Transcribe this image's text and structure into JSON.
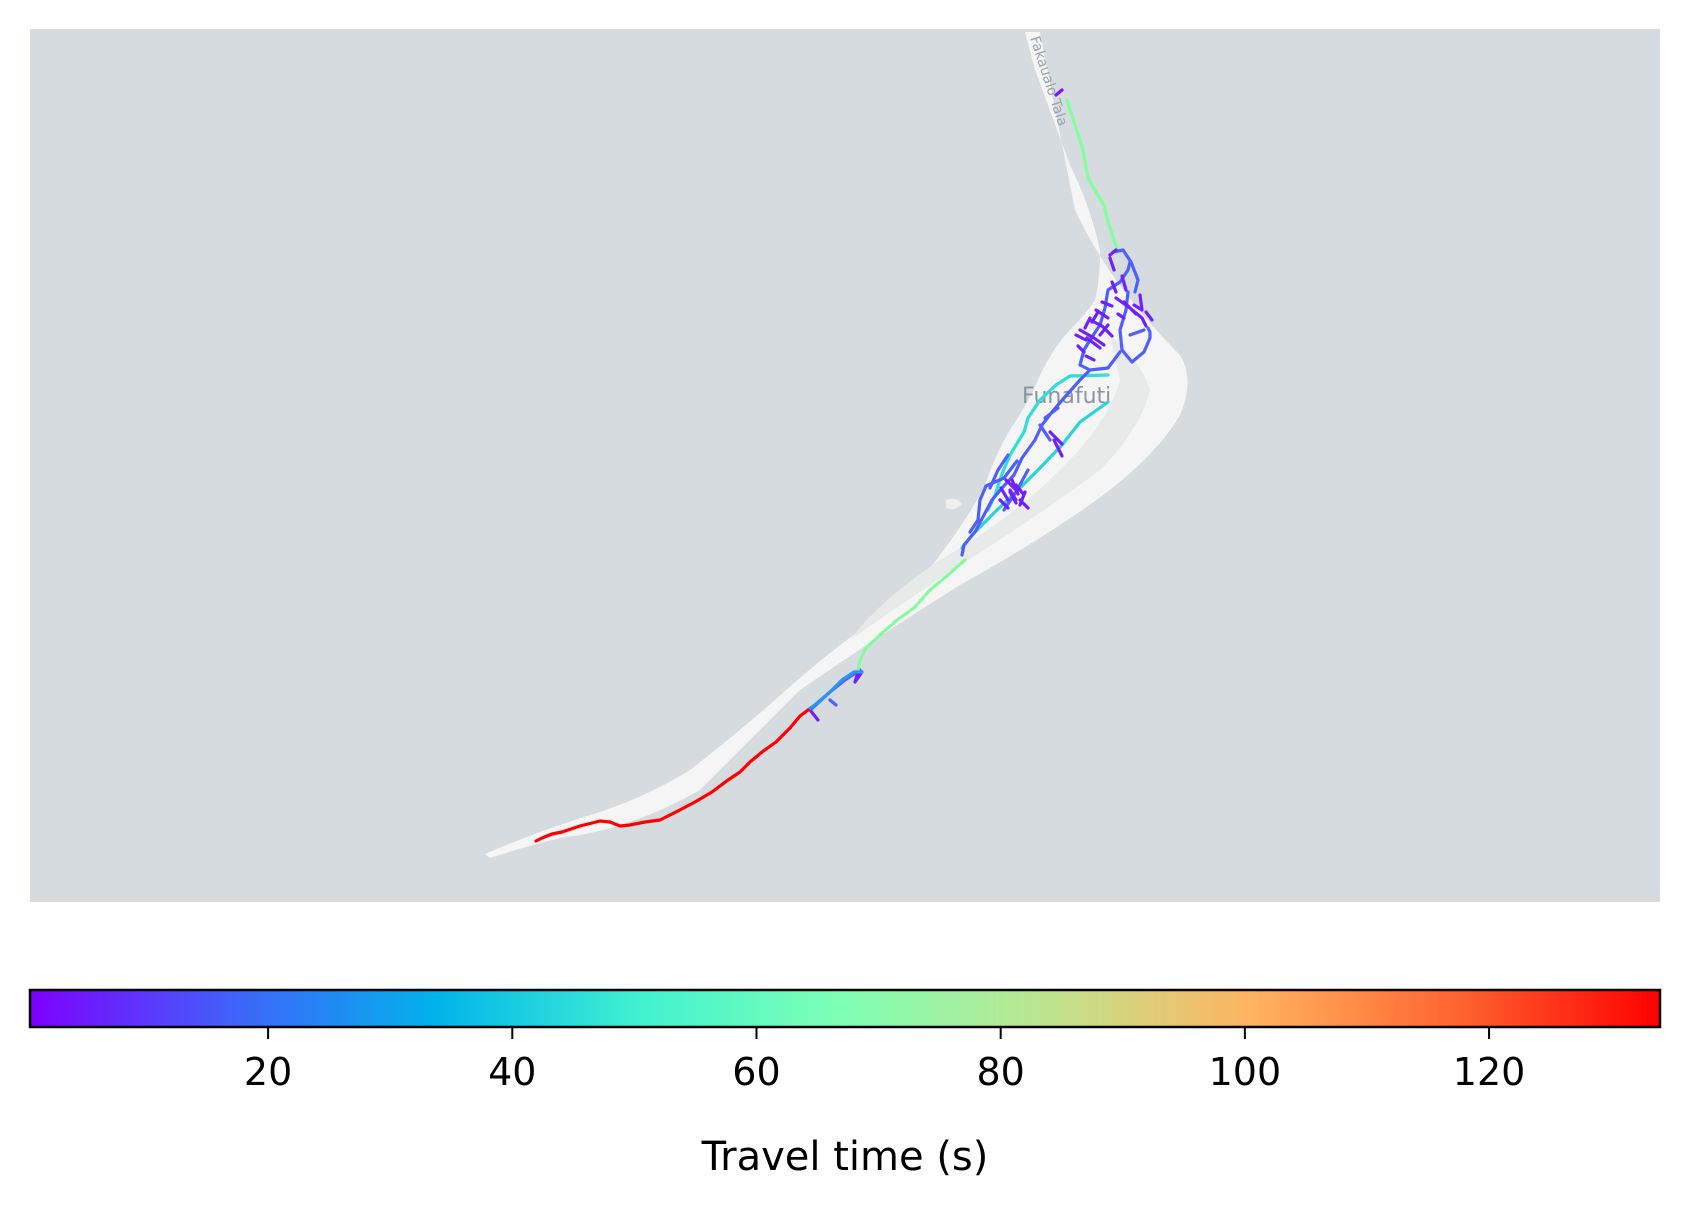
{
  "map": {
    "place_label": "Funafuti",
    "road_name_label": "Fakaualo Tala",
    "water_color": "#d5dbde",
    "land_color": "#f4f5f4",
    "colormap": "rainbow",
    "road_segments": [
      {
        "id": "north-stub",
        "minutes_value": 2,
        "color": "#7a16ff"
      },
      {
        "id": "north-road",
        "minutes_value": 70,
        "color": "#80ff9c"
      },
      {
        "id": "town-west-loop",
        "minutes_value": 50,
        "color": "#2edfd8"
      },
      {
        "id": "town-east-diagonal",
        "minutes_value": 45,
        "color": "#2ad4d4"
      },
      {
        "id": "town-grid",
        "minutes_value": 15,
        "color": "#4f5ffc"
      },
      {
        "id": "town-core",
        "minutes_value": 5,
        "color": "#7020ff"
      },
      {
        "id": "south-link",
        "minutes_value": 68,
        "color": "#86fb9d"
      },
      {
        "id": "south-mid",
        "minutes_value": 30,
        "color": "#2b93f0"
      },
      {
        "id": "south-far",
        "minutes_value": 134,
        "color": "#ff0000"
      }
    ]
  },
  "colorbar": {
    "label": "Travel time (s)",
    "min": 0.5,
    "max": 134,
    "ticks": [
      "20",
      "40",
      "60",
      "80",
      "100",
      "120"
    ],
    "tick_values": [
      20,
      40,
      60,
      80,
      100,
      120
    ],
    "stops": [
      "#7f00ff",
      "#4062fa",
      "#00b4eb",
      "#41f2d0",
      "#80ffb4",
      "#bfe48f",
      "#ffb360",
      "#ff6430",
      "#ff0000"
    ]
  }
}
